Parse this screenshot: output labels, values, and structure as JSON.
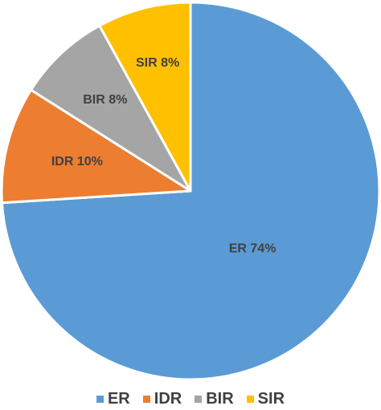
{
  "chart_data": {
    "type": "pie",
    "title": "",
    "categories": [
      "ER",
      "IDR",
      "BIR",
      "SIR"
    ],
    "values": [
      74,
      10,
      8,
      8
    ],
    "labels": [
      "ER 74%",
      "IDR 10%",
      "BIR 8%",
      "SIR 8%"
    ],
    "colors": [
      "#5B9BD5",
      "#ED7D31",
      "#A5A5A5",
      "#FFC000"
    ],
    "start_angle_deg": 0,
    "direction": "clockwise",
    "legend": {
      "placement": "bottom",
      "items": [
        "ER",
        "IDR",
        "BIR",
        "SIR"
      ]
    }
  }
}
